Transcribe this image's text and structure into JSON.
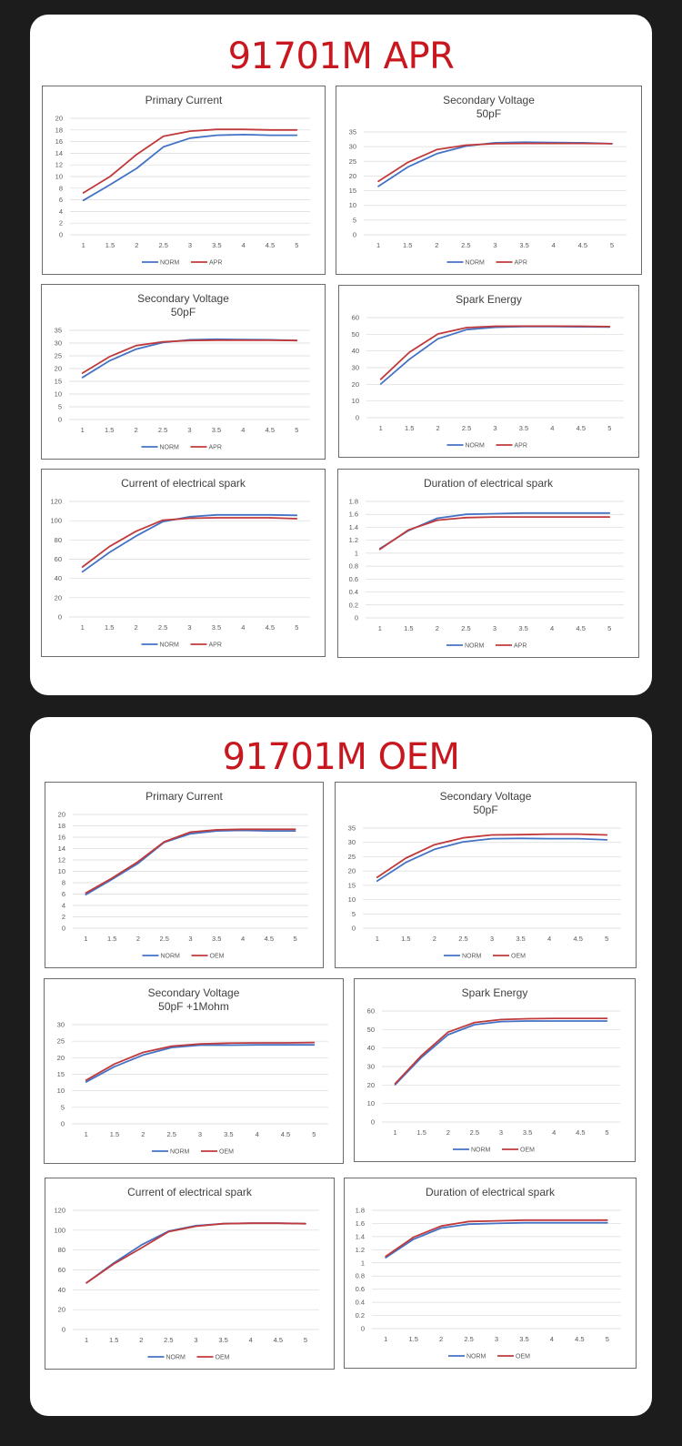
{
  "colors": {
    "norm": "#4472c4",
    "apr": "#c0393b",
    "oem": "#c0393b",
    "title": "#c8171f"
  },
  "sections": [
    {
      "title": "91701M APR"
    },
    {
      "title": "91701M OEM"
    }
  ],
  "chart_data": [
    {
      "id": "apr-primary-current",
      "type": "line",
      "title": [
        "Primary Current"
      ],
      "x": [
        "1",
        "1.5",
        "2",
        "2.5",
        "3",
        "3.5",
        "4",
        "4.5",
        "5"
      ],
      "ylim": [
        0,
        20
      ],
      "yticks": [
        0,
        2,
        4,
        6,
        8,
        10,
        12,
        14,
        16,
        18,
        20
      ],
      "grid": true,
      "legend": "bottom",
      "series": [
        {
          "name": "NORM",
          "values": [
            5.9,
            8.6,
            11.4,
            15.1,
            16.6,
            17.1,
            17.2,
            17.1,
            17.1
          ]
        },
        {
          "name": "APR",
          "values": [
            7.2,
            10.0,
            13.8,
            16.9,
            17.8,
            18.1,
            18.1,
            18.0,
            18.0
          ]
        }
      ]
    },
    {
      "id": "apr-secondary-voltage",
      "type": "line",
      "title": [
        "Secondary Voltage",
        "50pF"
      ],
      "x": [
        "1",
        "1.5",
        "2",
        "2.5",
        "3",
        "3.5",
        "4",
        "4.5",
        "5"
      ],
      "ylim": [
        0,
        35
      ],
      "yticks": [
        0,
        5,
        10,
        15,
        20,
        25,
        30,
        35
      ],
      "grid": true,
      "legend": "bottom",
      "series": [
        {
          "name": "NORM",
          "values": [
            16.5,
            23.0,
            27.6,
            30.2,
            31.3,
            31.5,
            31.4,
            31.3,
            31.0
          ]
        },
        {
          "name": "APR",
          "values": [
            18.2,
            24.6,
            29.0,
            30.5,
            31.0,
            31.1,
            31.1,
            31.1,
            31.0
          ]
        }
      ]
    },
    {
      "id": "apr-secondary-voltage-2",
      "type": "line",
      "title": [
        "Secondary Voltage",
        "50pF"
      ],
      "x": [
        "1",
        "1.5",
        "2",
        "2.5",
        "3",
        "3.5",
        "4",
        "4.5",
        "5"
      ],
      "ylim": [
        0,
        35
      ],
      "yticks": [
        0,
        5,
        10,
        15,
        20,
        25,
        30,
        35
      ],
      "grid": true,
      "legend": "bottom",
      "series": [
        {
          "name": "NORM",
          "values": [
            16.5,
            23.0,
            27.6,
            30.2,
            31.3,
            31.5,
            31.4,
            31.3,
            31.0
          ]
        },
        {
          "name": "APR",
          "values": [
            18.2,
            24.6,
            29.0,
            30.5,
            31.0,
            31.1,
            31.1,
            31.1,
            31.0
          ]
        }
      ]
    },
    {
      "id": "apr-spark-energy",
      "type": "line",
      "title": [
        "Spark Energy"
      ],
      "x": [
        "1",
        "1.5",
        "2",
        "2.5",
        "3",
        "3.5",
        "4",
        "4.5",
        "5"
      ],
      "ylim": [
        0,
        60
      ],
      "yticks": [
        0,
        10,
        20,
        30,
        40,
        50,
        60
      ],
      "grid": true,
      "legend": "bottom",
      "series": [
        {
          "name": "NORM",
          "values": [
            20.2,
            35.0,
            47.3,
            52.8,
            54.2,
            54.6,
            54.6,
            54.5,
            54.4
          ]
        },
        {
          "name": "APR",
          "values": [
            23.0,
            39.2,
            50.2,
            54.0,
            54.8,
            54.9,
            54.9,
            54.8,
            54.6
          ]
        }
      ]
    },
    {
      "id": "apr-current-spark",
      "type": "line",
      "title": [
        "Current of electrical spark"
      ],
      "x": [
        "1",
        "1.5",
        "2",
        "2.5",
        "3",
        "3.5",
        "4",
        "4.5",
        "5"
      ],
      "ylim": [
        0,
        120
      ],
      "yticks": [
        0,
        20,
        40,
        60,
        80,
        100,
        120
      ],
      "grid": true,
      "legend": "bottom",
      "series": [
        {
          "name": "NORM",
          "values": [
            47,
            67,
            84,
            99,
            104,
            106,
            106,
            106,
            105.5
          ]
        },
        {
          "name": "APR",
          "values": [
            52,
            73,
            89,
            100.5,
            102.5,
            103,
            103,
            103,
            102
          ]
        }
      ]
    },
    {
      "id": "apr-duration-spark",
      "type": "line",
      "title": [
        "Duration of electrical spark"
      ],
      "x": [
        "1",
        "1.5",
        "2",
        "2.5",
        "3",
        "3.5",
        "4",
        "4.5",
        "5"
      ],
      "ylim": [
        0,
        1.8
      ],
      "yticks": [
        0,
        0.2,
        0.4,
        0.6,
        0.8,
        1,
        1.2,
        1.4,
        1.6,
        1.8
      ],
      "grid": true,
      "legend": "bottom",
      "series": [
        {
          "name": "NORM",
          "values": [
            1.07,
            1.35,
            1.54,
            1.6,
            1.61,
            1.62,
            1.62,
            1.62,
            1.62
          ]
        },
        {
          "name": "APR",
          "values": [
            1.06,
            1.36,
            1.51,
            1.55,
            1.56,
            1.56,
            1.56,
            1.56,
            1.56
          ]
        }
      ]
    },
    {
      "id": "oem-primary-current",
      "type": "line",
      "title": [
        "Primary Current"
      ],
      "x": [
        "1",
        "1.5",
        "2",
        "2.5",
        "3",
        "3.5",
        "4",
        "4.5",
        "5"
      ],
      "ylim": [
        0,
        20
      ],
      "yticks": [
        0,
        2,
        4,
        6,
        8,
        10,
        12,
        14,
        16,
        18,
        20
      ],
      "grid": true,
      "legend": "bottom",
      "series": [
        {
          "name": "NORM",
          "values": [
            5.9,
            8.6,
            11.4,
            15.1,
            16.6,
            17.1,
            17.2,
            17.1,
            17.1
          ]
        },
        {
          "name": "OEM",
          "values": [
            6.2,
            8.8,
            11.7,
            15.2,
            16.9,
            17.3,
            17.4,
            17.4,
            17.4
          ]
        }
      ]
    },
    {
      "id": "oem-secondary-voltage",
      "type": "line",
      "title": [
        "Secondary Voltage",
        "50pF"
      ],
      "x": [
        "1",
        "1.5",
        "2",
        "2.5",
        "3",
        "3.5",
        "4",
        "4.5",
        "5"
      ],
      "ylim": [
        0,
        35
      ],
      "yticks": [
        0,
        5,
        10,
        15,
        20,
        25,
        30,
        35
      ],
      "grid": true,
      "legend": "bottom",
      "series": [
        {
          "name": "NORM",
          "values": [
            16.5,
            23.0,
            27.6,
            30.2,
            31.3,
            31.4,
            31.3,
            31.3,
            30.9
          ]
        },
        {
          "name": "OEM",
          "values": [
            17.8,
            24.5,
            29.2,
            31.6,
            32.6,
            32.7,
            32.9,
            32.9,
            32.6
          ]
        }
      ]
    },
    {
      "id": "oem-secondary-voltage-1mohm",
      "type": "line",
      "title": [
        "Secondary Voltage",
        "50pF +1Mohm"
      ],
      "x": [
        "1",
        "1.5",
        "2",
        "2.5",
        "3",
        "3.5",
        "4",
        "4.5",
        "5"
      ],
      "ylim": [
        0,
        30
      ],
      "yticks": [
        0,
        5,
        10,
        15,
        20,
        25,
        30
      ],
      "grid": true,
      "legend": "bottom",
      "series": [
        {
          "name": "NORM",
          "values": [
            12.7,
            17.3,
            20.8,
            23.1,
            23.8,
            23.8,
            23.9,
            23.9,
            23.9
          ]
        },
        {
          "name": "OEM",
          "values": [
            13.2,
            18.1,
            21.6,
            23.5,
            24.2,
            24.4,
            24.5,
            24.5,
            24.6
          ]
        }
      ]
    },
    {
      "id": "oem-spark-energy",
      "type": "line",
      "title": [
        "Spark Energy"
      ],
      "x": [
        "1",
        "1.5",
        "2",
        "2.5",
        "3",
        "3.5",
        "4",
        "4.5",
        "5"
      ],
      "ylim": [
        0,
        60
      ],
      "yticks": [
        0,
        10,
        20,
        30,
        40,
        50,
        60
      ],
      "grid": true,
      "legend": "bottom",
      "series": [
        {
          "name": "NORM",
          "values": [
            20.2,
            35.0,
            47.2,
            52.6,
            54.3,
            54.6,
            54.6,
            54.6,
            54.6
          ]
        },
        {
          "name": "OEM",
          "values": [
            20.8,
            36.0,
            48.6,
            53.8,
            55.4,
            55.8,
            56.0,
            56.0,
            56.0
          ]
        }
      ]
    },
    {
      "id": "oem-current-spark",
      "type": "line",
      "title": [
        "Current of electrical spark"
      ],
      "x": [
        "1",
        "1.5",
        "2",
        "2.5",
        "3",
        "3.5",
        "4",
        "4.5",
        "5"
      ],
      "ylim": [
        0,
        120
      ],
      "yticks": [
        0,
        20,
        40,
        60,
        80,
        100,
        120
      ],
      "grid": true,
      "legend": "bottom",
      "series": [
        {
          "name": "NORM",
          "values": [
            47,
            67,
            85,
            99,
            104.5,
            106.5,
            107,
            107,
            106.5
          ]
        },
        {
          "name": "OEM",
          "values": [
            47,
            66,
            82,
            98.5,
            104,
            106.5,
            107,
            107,
            106.5
          ]
        }
      ]
    },
    {
      "id": "oem-duration-spark",
      "type": "line",
      "title": [
        "Duration of electrical spark"
      ],
      "x": [
        "1",
        "1.5",
        "2",
        "2.5",
        "3",
        "3.5",
        "4",
        "4.5",
        "5"
      ],
      "ylim": [
        0,
        1.8
      ],
      "yticks": [
        0,
        0.2,
        0.4,
        0.6,
        0.8,
        1,
        1.2,
        1.4,
        1.6,
        1.8
      ],
      "grid": true,
      "legend": "bottom",
      "series": [
        {
          "name": "NORM",
          "values": [
            1.08,
            1.36,
            1.53,
            1.59,
            1.6,
            1.61,
            1.61,
            1.61,
            1.61
          ]
        },
        {
          "name": "OEM",
          "values": [
            1.1,
            1.39,
            1.56,
            1.63,
            1.64,
            1.65,
            1.65,
            1.65,
            1.65
          ]
        }
      ]
    }
  ]
}
